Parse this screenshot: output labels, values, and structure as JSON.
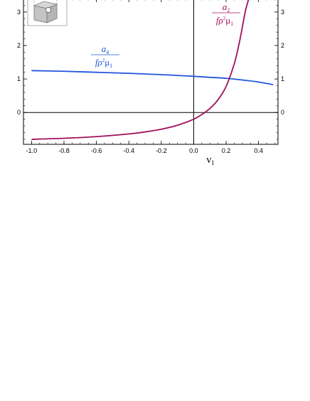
{
  "chart_data": {
    "type": "line",
    "title": "",
    "xlabel": "ν",
    "xlabel_subscript": "1",
    "ylabel": "",
    "xlim": [
      -1.05,
      0.52
    ],
    "ylim": [
      -0.95,
      3.4
    ],
    "x_ticks": [
      -1.0,
      -0.8,
      -0.6,
      -0.4,
      -0.2,
      0.0,
      0.2,
      0.4
    ],
    "x_tick_labels": [
      "-1.0",
      "-0.8",
      "-0.6",
      "-0.4",
      "-0.2",
      "0.0",
      "0.2",
      "0.4"
    ],
    "y_ticks": [
      0,
      1,
      2,
      3
    ],
    "y_tick_labels": [
      "0",
      "1",
      "2",
      "3"
    ],
    "grid": false,
    "series": [
      {
        "name_numerator": "a",
        "name_numerator_sub": "4",
        "name_denominator": "fρ",
        "name_denominator_sup": "2",
        "name_denominator_mu": "μ",
        "name_denominator_mu_sub": "1",
        "color": "#2255dd",
        "x": [
          -1.0,
          -0.8,
          -0.6,
          -0.4,
          -0.2,
          0.0,
          0.1,
          0.2,
          0.3,
          0.4,
          0.49
        ],
        "y": [
          1.25,
          1.23,
          1.2,
          1.17,
          1.13,
          1.08,
          1.05,
          1.02,
          0.97,
          0.91,
          0.83
        ]
      },
      {
        "name_numerator": "a",
        "name_numerator_sub": "2",
        "name_denominator": "fρ",
        "name_denominator_sup": "2",
        "name_denominator_mu": "μ",
        "name_denominator_mu_sub": "1",
        "color": "#a0105a",
        "x": [
          -1.0,
          -0.8,
          -0.6,
          -0.4,
          -0.3,
          -0.2,
          -0.1,
          0.0,
          0.05,
          0.1,
          0.15,
          0.2,
          0.25,
          0.28,
          0.3,
          0.32,
          0.34
        ],
        "y": [
          -0.8,
          -0.77,
          -0.72,
          -0.64,
          -0.58,
          -0.5,
          -0.38,
          -0.2,
          -0.06,
          0.12,
          0.38,
          0.78,
          1.45,
          2.05,
          2.55,
          3.05,
          3.4
        ]
      }
    ]
  },
  "inset": {
    "icon": "tube-cell-icon"
  }
}
